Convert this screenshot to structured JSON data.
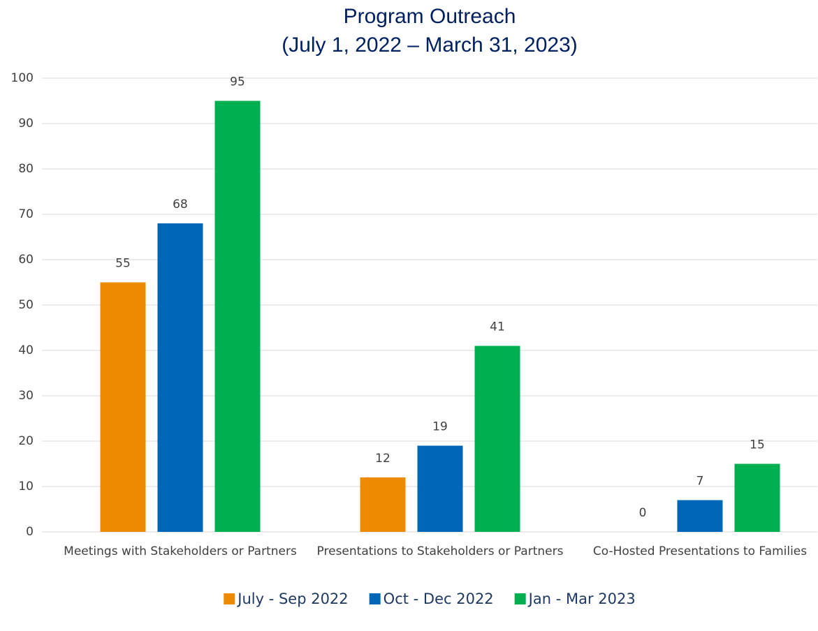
{
  "chart_data": {
    "type": "bar",
    "title": "Program Outreach",
    "subtitle": "(July 1, 2022 – March 31, 2023)",
    "categories": [
      "Meetings with Stakeholders or Partners",
      "Presentations to Stakeholders or Partners",
      "Co-Hosted Presentations to Families"
    ],
    "series": [
      {
        "name": "July - Sep 2022",
        "color": "#ED8B00",
        "values": [
          55,
          12,
          0
        ]
      },
      {
        "name": "Oct - Dec 2022",
        "color": "#0066B8",
        "values": [
          68,
          19,
          7
        ]
      },
      {
        "name": "Jan - Mar 2023",
        "color": "#00B050",
        "values": [
          95,
          41,
          15
        ]
      }
    ],
    "ylim": [
      0,
      100
    ],
    "yticks": [
      0,
      10,
      20,
      30,
      40,
      50,
      60,
      70,
      80,
      90,
      100
    ],
    "grid": true,
    "legend": "bottom"
  }
}
